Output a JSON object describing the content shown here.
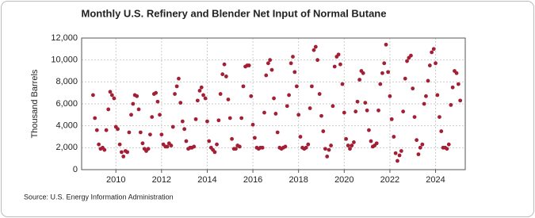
{
  "chart_data": {
    "type": "scatter",
    "title": "Monthly U.S. Refinery and Blender Net Input of Normal Butane",
    "y_label": "Thousand Barrels",
    "source": "Source: U.S. Energy Information Administration",
    "color": "#a31f34",
    "grid": true,
    "xlim": [
      2008.5,
      2025.3
    ],
    "xticks": [
      2010,
      2012,
      2014,
      2016,
      2018,
      2020,
      2022,
      2024
    ],
    "ylim": [
      0,
      12000
    ],
    "yticks": [
      0,
      {
        "value": 2000,
        "label": "2,000"
      },
      {
        "value": 4000,
        "label": "4,000"
      },
      {
        "value": 6000,
        "label": "6,000"
      },
      {
        "value": 8000,
        "label": "8,000"
      },
      {
        "value": 10000,
        "label": "10,000"
      },
      {
        "value": 12000,
        "label": "12,000"
      }
    ],
    "x": [
      2009,
      2009.08,
      2009.17,
      2009.25,
      2009.33,
      2009.42,
      2009.5,
      2009.58,
      2009.67,
      2009.75,
      2009.83,
      2009.92,
      2010,
      2010.08,
      2010.17,
      2010.25,
      2010.33,
      2010.42,
      2010.5,
      2010.58,
      2010.67,
      2010.75,
      2010.83,
      2010.92,
      2011,
      2011.08,
      2011.17,
      2011.25,
      2011.33,
      2011.42,
      2011.5,
      2011.58,
      2011.67,
      2011.75,
      2011.83,
      2011.92,
      2012,
      2012.08,
      2012.17,
      2012.25,
      2012.33,
      2012.42,
      2012.5,
      2012.58,
      2012.67,
      2012.75,
      2012.83,
      2012.92,
      2013,
      2013.08,
      2013.17,
      2013.25,
      2013.33,
      2013.42,
      2013.5,
      2013.58,
      2013.67,
      2013.75,
      2013.83,
      2013.92,
      2014,
      2014.08,
      2014.17,
      2014.25,
      2014.33,
      2014.42,
      2014.5,
      2014.58,
      2014.67,
      2014.75,
      2014.83,
      2014.92,
      2015,
      2015.08,
      2015.17,
      2015.25,
      2015.33,
      2015.42,
      2015.5,
      2015.58,
      2015.67,
      2015.75,
      2015.83,
      2015.92,
      2016,
      2016.08,
      2016.17,
      2016.25,
      2016.33,
      2016.42,
      2016.5,
      2016.58,
      2016.67,
      2016.75,
      2016.83,
      2016.92,
      2017,
      2017.08,
      2017.17,
      2017.25,
      2017.33,
      2017.42,
      2017.5,
      2017.58,
      2017.67,
      2017.75,
      2017.83,
      2017.92,
      2018,
      2018.08,
      2018.17,
      2018.25,
      2018.33,
      2018.42,
      2018.5,
      2018.58,
      2018.67,
      2018.75,
      2018.83,
      2018.92,
      2019,
      2019.08,
      2019.17,
      2019.25,
      2019.33,
      2019.42,
      2019.5,
      2019.58,
      2019.67,
      2019.75,
      2019.83,
      2019.92,
      2020,
      2020.08,
      2020.17,
      2020.25,
      2020.33,
      2020.42,
      2020.5,
      2020.58,
      2020.67,
      2020.75,
      2020.83,
      2020.92,
      2021,
      2021.08,
      2021.17,
      2021.25,
      2021.33,
      2021.42,
      2021.5,
      2021.58,
      2021.67,
      2021.75,
      2021.83,
      2021.92,
      2022,
      2022.08,
      2022.17,
      2022.25,
      2022.33,
      2022.42,
      2022.5,
      2022.58,
      2022.67,
      2022.75,
      2022.83,
      2022.92,
      2023,
      2023.08,
      2023.17,
      2023.25,
      2023.33,
      2023.42,
      2023.5,
      2023.58,
      2023.67,
      2023.75,
      2023.83,
      2023.92,
      2024,
      2024.08,
      2024.17,
      2024.25,
      2024.33,
      2024.42,
      2024.5,
      2024.58,
      2024.67,
      2024.75,
      2024.83,
      2024.92,
      2025,
      2025.08
    ],
    "values": [
      6800,
      4700,
      3600,
      2300,
      1900,
      2000,
      1800,
      3600,
      5500,
      7100,
      6800,
      6500,
      3900,
      3700,
      2300,
      1600,
      1200,
      1700,
      1600,
      3400,
      5000,
      6000,
      6800,
      6700,
      5500,
      3400,
      2400,
      1900,
      1700,
      1900,
      3200,
      4800,
      6900,
      7000,
      6200,
      5000,
      3200,
      2300,
      2100,
      2100,
      2400,
      2200,
      3900,
      6900,
      7600,
      8300,
      6100,
      4400,
      3700,
      2600,
      1900,
      2000,
      2000,
      2100,
      4600,
      6300,
      7200,
      7500,
      6800,
      6500,
      4400,
      2600,
      2000,
      1800,
      1600,
      2300,
      4500,
      6900,
      8700,
      9600,
      8500,
      6400,
      4700,
      2800,
      1900,
      1900,
      2200,
      2100,
      4700,
      7600,
      9400,
      9500,
      9500,
      6700,
      4100,
      2900,
      2000,
      1900,
      2000,
      2000,
      5200,
      8600,
      9700,
      10000,
      9100,
      6500,
      5100,
      3400,
      2000,
      1900,
      2000,
      2100,
      5800,
      6800,
      9700,
      10300,
      8900,
      7600,
      5000,
      3000,
      2000,
      1900,
      2000,
      2300,
      5600,
      7600,
      10900,
      11200,
      10000,
      6900,
      4900,
      3500,
      1900,
      1200,
      1800,
      2200,
      5800,
      9400,
      10300,
      10500,
      9600,
      7800,
      5200,
      2800,
      2200,
      1900,
      2200,
      2500,
      5300,
      6200,
      8200,
      9000,
      8800,
      6100,
      5400,
      3600,
      2600,
      2100,
      2200,
      2400,
      5400,
      7800,
      8800,
      9700,
      11400,
      8900,
      6700,
      4600,
      3000,
      1500,
      800,
      1300,
      1700,
      5300,
      8300,
      9900,
      10200,
      10400,
      7400,
      4800,
      2700,
      1400,
      2000,
      2300,
      6000,
      6700,
      8100,
      9500,
      10700,
      11000,
      9700,
      6800,
      4800,
      3500,
      2000,
      2000,
      1900,
      2300,
      5900,
      7500,
      9000,
      8800,
      7800,
      6300
    ]
  }
}
